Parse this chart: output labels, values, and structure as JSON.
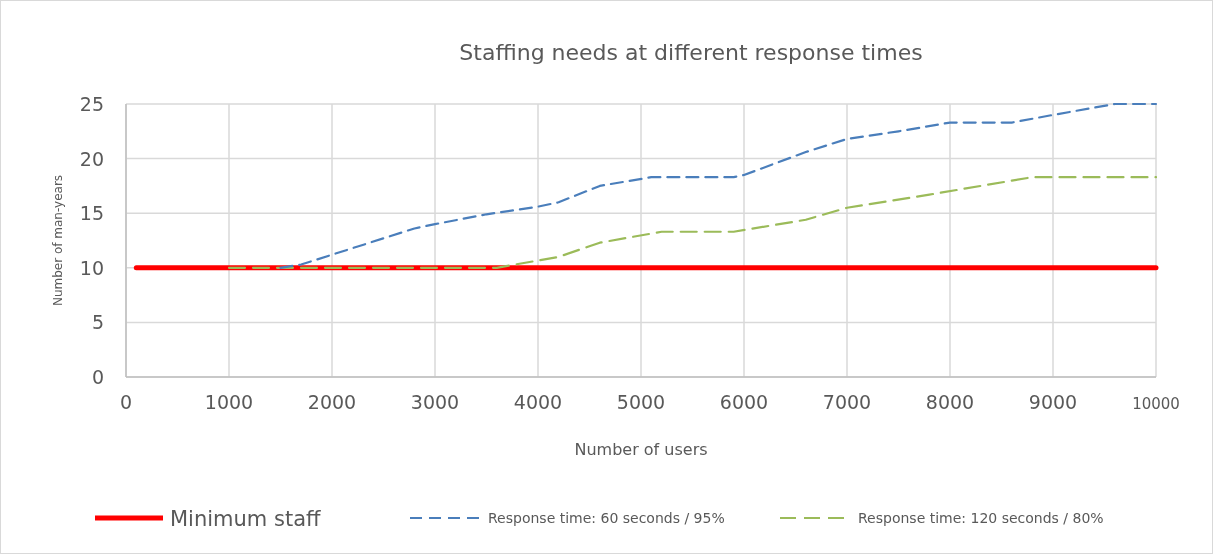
{
  "chart_data": {
    "type": "line",
    "title": "Staffing needs at different response times",
    "xlabel": "Number of users",
    "ylabel": "Number of man-years",
    "xlim": [
      0,
      10000
    ],
    "xticks": [
      0,
      1000,
      2000,
      3000,
      4000,
      5000,
      6000,
      7000,
      8000,
      9000,
      10000
    ],
    "ylim": [
      0,
      25
    ],
    "yticks": [
      0,
      5,
      10,
      15,
      20,
      25
    ],
    "grid": true,
    "legend": "bottom",
    "marker": "none",
    "series": [
      {
        "name": "Minimum staff",
        "color": "#ff0000",
        "line_style": "solid",
        "x": [
          100,
          10000
        ],
        "values": [
          10,
          10
        ]
      },
      {
        "name": "Response time: 60 seconds / 95%",
        "color": "#4a7ebb",
        "line_style": "dashed",
        "x": [
          1500,
          1700,
          2000,
          2500,
          2800,
          3000,
          3500,
          4000,
          4200,
          4600,
          5100,
          5900,
          6000,
          6600,
          7000,
          7500,
          8000,
          8600,
          9000,
          9600,
          10000
        ],
        "values": [
          10,
          10.3,
          11.2,
          12.7,
          13.6,
          14,
          14.9,
          15.6,
          16,
          17.5,
          18.3,
          18.3,
          18.5,
          20.6,
          21.8,
          22.5,
          23.3,
          23.3,
          24,
          25,
          25
        ]
      },
      {
        "name": "Response time: 120 seconds / 80%",
        "color": "#9bbb59",
        "line_style": "dashed",
        "x": [
          1000,
          3600,
          4200,
          4600,
          5200,
          5900,
          6600,
          7000,
          7800,
          8800,
          10000
        ],
        "values": [
          10,
          10,
          11,
          12.3,
          13.3,
          13.3,
          14.4,
          15.5,
          16.7,
          18.3,
          18.3
        ]
      }
    ]
  }
}
